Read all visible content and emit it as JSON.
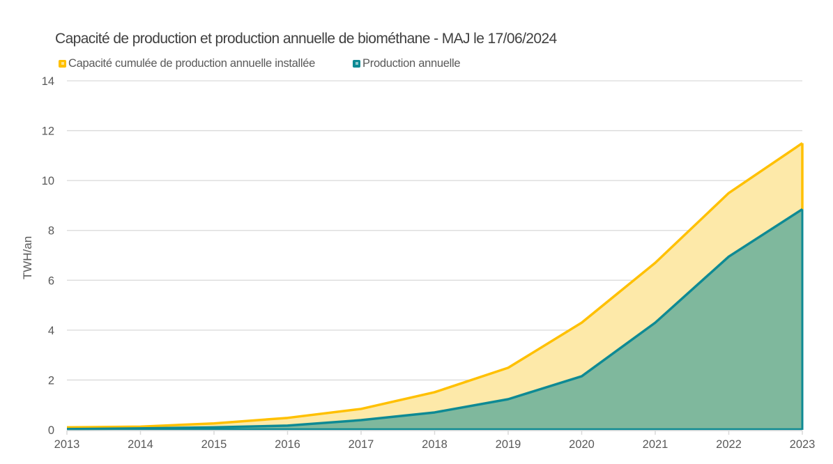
{
  "chart_data": {
    "type": "area",
    "title": "Capacité de production et production annuelle de biométhane - MAJ le 17/06/2024",
    "xlabel": "",
    "ylabel": "TWH/an",
    "ylim": [
      0,
      14
    ],
    "yticks": [
      0,
      2,
      4,
      6,
      8,
      10,
      12,
      14
    ],
    "grid": true,
    "legend_position": "top-left",
    "categories": [
      "2013",
      "2014",
      "2015",
      "2016",
      "2017",
      "2018",
      "2019",
      "2020",
      "2021",
      "2022",
      "2023"
    ],
    "series": [
      {
        "name": "Capacité cumulée de production annuelle installée",
        "color": "#FFC000",
        "fill": "#FDE9A9",
        "values": [
          0.1,
          0.13,
          0.26,
          0.48,
          0.84,
          1.51,
          2.49,
          4.3,
          6.7,
          9.5,
          11.5
        ]
      },
      {
        "name": "Production annuelle",
        "color": "#0E8A94",
        "fill": "#7FB89D",
        "values": [
          0.03,
          0.06,
          0.1,
          0.17,
          0.39,
          0.7,
          1.23,
          2.15,
          4.3,
          6.95,
          8.85
        ]
      }
    ]
  }
}
